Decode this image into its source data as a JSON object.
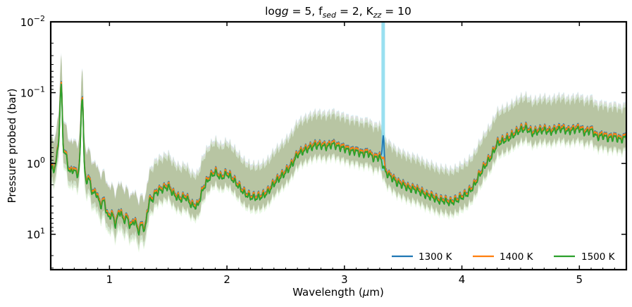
{
  "chart_data": {
    "type": "line",
    "title": "logg = 5, f_sed = 2, K_zz = 10",
    "title_parts": {
      "p1": "log",
      "p2": "g",
      "p3": " = 5, f",
      "p4": "sed",
      "p5": " = 2, K",
      "p6": "zz",
      "p7": " = 10"
    },
    "xlabel": "Wavelength (μm)",
    "xlabel_parts": {
      "a": "Wavelength (",
      "b": "μ",
      "c": "m)"
    },
    "ylabel": "Pressure probed (bar)",
    "xlim": [
      0.5,
      5.4
    ],
    "ylim_log10": [
      -2,
      1.5
    ],
    "y_inverted": true,
    "y_scale": "log",
    "x_ticks": [
      {
        "value": 1,
        "label": "1"
      },
      {
        "value": 2,
        "label": "2"
      },
      {
        "value": 3,
        "label": "3"
      },
      {
        "value": 4,
        "label": "4"
      },
      {
        "value": 5,
        "label": "5"
      }
    ],
    "y_ticks": [
      {
        "exp": -2,
        "base": "10",
        "sup": "−2"
      },
      {
        "exp": -1,
        "base": "10",
        "sup": "−1"
      },
      {
        "exp": 0,
        "base": "10",
        "sup": "0"
      },
      {
        "exp": 1,
        "base": "10",
        "sup": "1"
      }
    ],
    "legend_location": "lower-right",
    "band_log10_half_width": 0.45,
    "series": [
      {
        "name": "1300 K",
        "color": "#1f77b4",
        "band_color": "#7fd8ec",
        "offset": -0.01
      },
      {
        "name": "1400 K",
        "color": "#ff7f0e",
        "band_color": "#f2b8a0",
        "offset": 0.0
      },
      {
        "name": "1500 K",
        "color": "#2ca02c",
        "band_color": "#b8ecb0",
        "offset": 0.03
      }
    ],
    "base_curve": {
      "x": [
        0.5,
        0.55,
        0.58,
        0.6,
        0.65,
        0.7,
        0.74,
        0.76,
        0.78,
        0.8,
        0.85,
        0.9,
        0.95,
        1.0,
        1.05,
        1.1,
        1.15,
        1.2,
        1.25,
        1.3,
        1.32,
        1.35,
        1.4,
        1.45,
        1.5,
        1.55,
        1.6,
        1.65,
        1.7,
        1.75,
        1.8,
        1.85,
        1.9,
        1.95,
        2.0,
        2.05,
        2.1,
        2.15,
        2.2,
        2.25,
        2.3,
        2.35,
        2.4,
        2.45,
        2.5,
        2.55,
        2.6,
        2.65,
        2.7,
        2.75,
        2.8,
        2.85,
        2.9,
        2.95,
        3.0,
        3.05,
        3.1,
        3.15,
        3.2,
        3.25,
        3.3,
        3.33,
        3.35,
        3.4,
        3.45,
        3.5,
        3.55,
        3.6,
        3.65,
        3.7,
        3.75,
        3.8,
        3.85,
        3.9,
        3.95,
        4.0,
        4.05,
        4.1,
        4.15,
        4.2,
        4.25,
        4.3,
        4.35,
        4.4,
        4.45,
        4.5,
        4.55,
        4.6,
        4.65,
        4.7,
        4.75,
        4.8,
        4.85,
        4.9,
        4.95,
        5.0,
        5.05,
        5.1,
        5.15,
        5.2,
        5.25,
        5.3,
        5.35,
        5.4
      ],
      "log10_pressure": [
        0.12,
        -0.08,
        -0.45,
        -0.25,
        0.02,
        0.12,
        0.05,
        -0.3,
        0.05,
        0.18,
        0.32,
        0.48,
        0.55,
        0.72,
        0.78,
        0.68,
        0.8,
        0.82,
        0.88,
        0.9,
        0.65,
        0.52,
        0.38,
        0.34,
        0.3,
        0.42,
        0.48,
        0.45,
        0.57,
        0.58,
        0.32,
        0.18,
        0.1,
        0.18,
        0.12,
        0.2,
        0.3,
        0.4,
        0.45,
        0.46,
        0.44,
        0.38,
        0.26,
        0.18,
        0.1,
        0.0,
        -0.15,
        -0.2,
        -0.24,
        -0.28,
        -0.28,
        -0.26,
        -0.3,
        -0.26,
        -0.24,
        -0.2,
        -0.2,
        -0.16,
        -0.18,
        -0.1,
        -0.12,
        0.0,
        0.1,
        0.17,
        0.25,
        0.28,
        0.33,
        0.34,
        0.38,
        0.43,
        0.45,
        0.5,
        0.5,
        0.53,
        0.5,
        0.45,
        0.4,
        0.3,
        0.14,
        0.0,
        -0.12,
        -0.3,
        -0.34,
        -0.38,
        -0.44,
        -0.5,
        -0.52,
        -0.45,
        -0.48,
        -0.5,
        -0.47,
        -0.5,
        -0.52,
        -0.48,
        -0.5,
        -0.52,
        -0.46,
        -0.5,
        -0.4,
        -0.42,
        -0.38,
        -0.4,
        -0.36,
        -0.4
      ]
    },
    "spikes": [
      {
        "name": "K 0.77 um feature",
        "x": 0.77,
        "log10_pressure": -0.95
      },
      {
        "name": "0.59 um feature",
        "x": 0.59,
        "log10_pressure": -1.15
      },
      {
        "name": "CH4 3.3 um feature, 1300 K",
        "x": 3.33,
        "log10_pressure": -0.42
      }
    ]
  }
}
